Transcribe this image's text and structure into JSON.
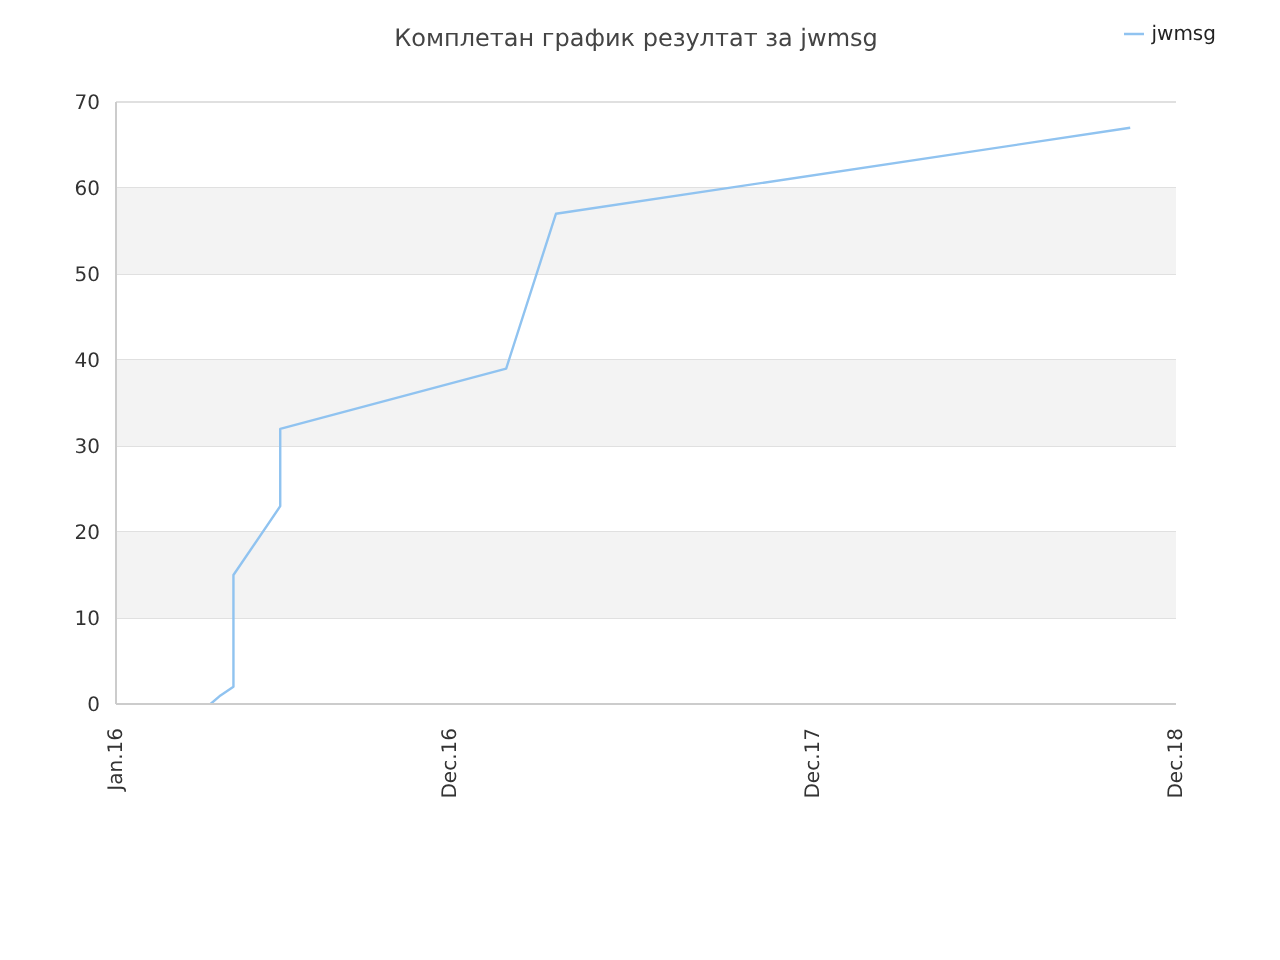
{
  "chart_data": {
    "type": "line",
    "title": "Комплетан график резултат за jwmsg",
    "x": [
      "2016-04-05",
      "2016-04-15",
      "2016-04-28",
      "2016-04-28",
      "2016-06-14",
      "2016-06-14",
      "2017-01-27",
      "2017-03-18",
      "2018-10-16"
    ],
    "series": [
      {
        "name": "jwmsg",
        "color": "#90c3f0",
        "values": [
          0,
          1,
          2,
          15,
          23,
          32,
          39,
          57,
          67
        ]
      }
    ],
    "xlim": [
      "2016-01-01",
      "2018-12-01"
    ],
    "xticks": [
      {
        "value": "2016-01-01",
        "label": "Jan.16"
      },
      {
        "value": "2016-12-01",
        "label": "Dec.16"
      },
      {
        "value": "2017-12-01",
        "label": "Dec.17"
      },
      {
        "value": "2018-12-01",
        "label": "Dec.18"
      }
    ],
    "ylim": [
      0,
      70
    ],
    "yticks": [
      0,
      10,
      20,
      30,
      40,
      50,
      60,
      70
    ],
    "bands": [
      {
        "axis": "y",
        "from": 10,
        "to": 20,
        "color": "#f3f3f3"
      },
      {
        "axis": "y",
        "from": 30,
        "to": 40,
        "color": "#f3f3f3"
      },
      {
        "axis": "y",
        "from": 50,
        "to": 60,
        "color": "#f3f3f3"
      }
    ],
    "grid": "y",
    "legend": "top right",
    "marker": "none",
    "line_style": "solid"
  }
}
